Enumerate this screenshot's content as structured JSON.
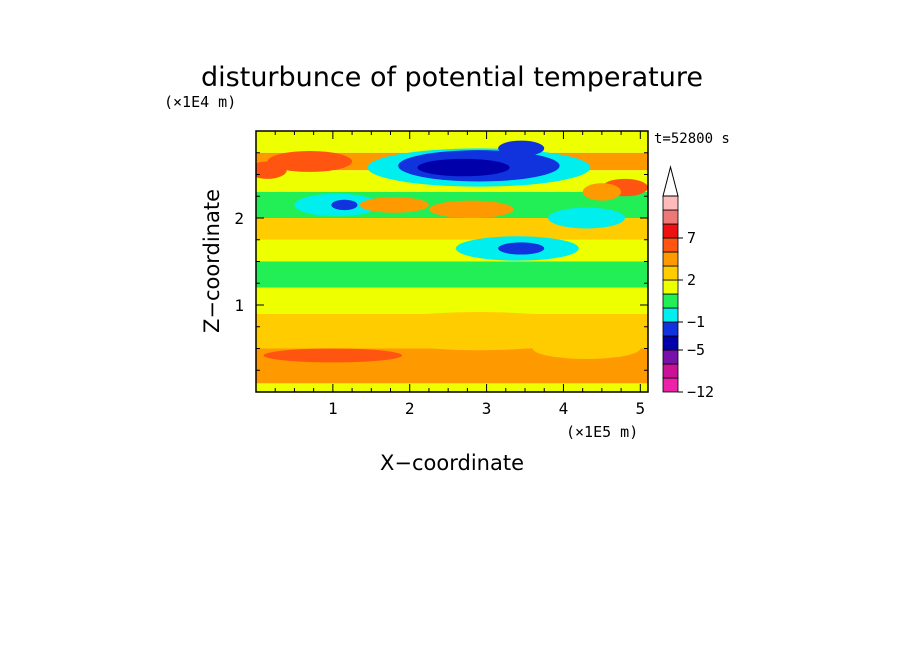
{
  "chart_data": {
    "type": "heatmap",
    "title": "disturbunce of potential temperature",
    "time_label": "t=52800 s",
    "xlabel": "X−coordinate",
    "ylabel": "Z−coordinate",
    "x_scale_label": "(×1E5 m)",
    "y_scale_label": "(×1E4 m)",
    "xlim": [
      0,
      5.1
    ],
    "ylim": [
      0,
      3.0
    ],
    "x_ticks": [
      1,
      2,
      3,
      4,
      5
    ],
    "x_tick_labels": [
      "1",
      "2",
      "3",
      "4",
      "5"
    ],
    "y_ticks": [
      1,
      2
    ],
    "y_tick_labels": [
      "1",
      "2"
    ],
    "colorbar": {
      "colors": [
        "#ee22aa",
        "#cc1199",
        "#7711aa",
        "#0000aa",
        "#1133dd",
        "#00eeee",
        "#22ee55",
        "#eeff00",
        "#ffcc00",
        "#ff9900",
        "#ff5511",
        "#ee1111",
        "#ee7777",
        "#ffbbbb"
      ],
      "levels": [
        -12,
        -9,
        -7,
        -5,
        -3,
        -1,
        0,
        1,
        2,
        3,
        5,
        7,
        9
      ],
      "labels": [
        {
          "value": -12,
          "text": "−12"
        },
        {
          "value": -5,
          "text": "−5"
        },
        {
          "value": -1,
          "text": "−1"
        },
        {
          "value": 2,
          "text": "2"
        },
        {
          "value": 7,
          "text": "7"
        }
      ],
      "extend_max": true
    },
    "field_bands": [
      {
        "z": [
          0.0,
          0.1
        ],
        "value": 0.5
      },
      {
        "z": [
          0.1,
          0.5
        ],
        "value": 2.2
      },
      {
        "z": [
          0.5,
          0.9
        ],
        "value": 1.5
      },
      {
        "z": [
          0.9,
          1.2
        ],
        "value": 0.5
      },
      {
        "z": [
          1.2,
          1.5
        ],
        "value": -0.5
      },
      {
        "z": [
          1.5,
          1.75
        ],
        "value": 0.4
      },
      {
        "z": [
          1.75,
          2.0
        ],
        "value": 1.0
      },
      {
        "z": [
          2.0,
          2.3
        ],
        "value": -0.6
      },
      {
        "z": [
          2.3,
          2.55
        ],
        "value": 0.5
      },
      {
        "z": [
          2.55,
          2.75
        ],
        "value": 2.0
      },
      {
        "z": [
          2.75,
          3.0
        ],
        "value": 0.3
      }
    ],
    "field_features": [
      {
        "x": 2.9,
        "z": 2.58,
        "rx": 1.45,
        "rz": 0.22,
        "value": -1.5
      },
      {
        "x": 2.9,
        "z": 2.6,
        "rx": 1.05,
        "rz": 0.18,
        "value": -4.5
      },
      {
        "x": 2.7,
        "z": 2.58,
        "rx": 0.6,
        "rz": 0.1,
        "value": -6
      },
      {
        "x": 3.45,
        "z": 2.8,
        "rx": 0.3,
        "rz": 0.09,
        "value": -4.5
      },
      {
        "x": 1.05,
        "z": 2.15,
        "rx": 0.55,
        "rz": 0.13,
        "value": -1.5
      },
      {
        "x": 1.15,
        "z": 2.15,
        "rx": 0.17,
        "rz": 0.06,
        "value": -4
      },
      {
        "x": 0.7,
        "z": 2.65,
        "rx": 0.55,
        "rz": 0.12,
        "value": 3.5
      },
      {
        "x": 0.15,
        "z": 2.55,
        "rx": 0.25,
        "rz": 0.1,
        "value": 3.5
      },
      {
        "x": 4.8,
        "z": 2.35,
        "rx": 0.3,
        "rz": 0.1,
        "value": 3.5
      },
      {
        "x": 4.5,
        "z": 2.3,
        "rx": 0.25,
        "rz": 0.1,
        "value": 2.5
      },
      {
        "x": 3.4,
        "z": 1.65,
        "rx": 0.8,
        "rz": 0.14,
        "value": -1.2
      },
      {
        "x": 3.45,
        "z": 1.65,
        "rx": 0.3,
        "rz": 0.07,
        "value": -4
      },
      {
        "x": 4.3,
        "z": 2.0,
        "rx": 0.5,
        "rz": 0.12,
        "value": -1.2
      },
      {
        "x": 2.8,
        "z": 2.1,
        "rx": 0.55,
        "rz": 0.1,
        "value": 2.5
      },
      {
        "x": 1.8,
        "z": 2.15,
        "rx": 0.45,
        "rz": 0.09,
        "value": 2.5
      },
      {
        "x": 2.9,
        "z": 0.7,
        "rx": 1.5,
        "rz": 0.22,
        "value": 1.5
      },
      {
        "x": 1.0,
        "z": 0.42,
        "rx": 0.9,
        "rz": 0.08,
        "value": 3.5
      },
      {
        "x": 4.3,
        "z": 0.5,
        "rx": 0.7,
        "rz": 0.12,
        "value": 1.5
      }
    ]
  }
}
